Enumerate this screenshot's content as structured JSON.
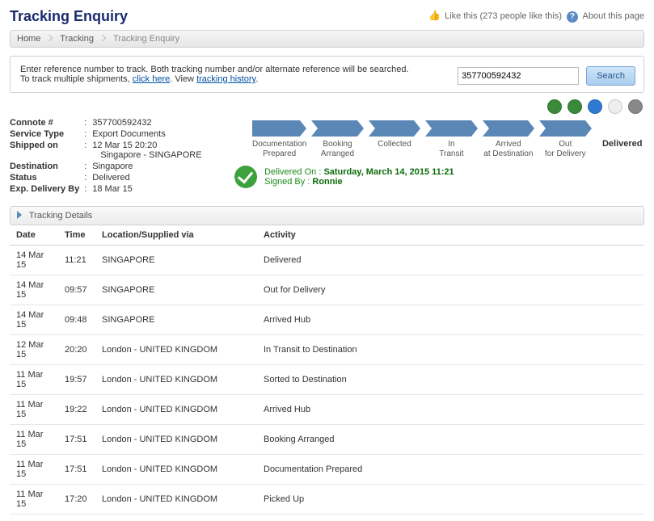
{
  "page": {
    "title": "Tracking Enquiry",
    "like_label": "Like this",
    "like_count": "(273 people like this)",
    "about_label": "About this page"
  },
  "breadcrumb": {
    "home": "Home",
    "tracking": "Tracking",
    "current": "Tracking Enquiry"
  },
  "search": {
    "line1": "Enter reference number to track. Both tracking number and/or alternate reference will be searched.",
    "line2a": "To track multiple shipments, ",
    "click_here": "click here",
    "line2b": ". View ",
    "tracking_history": "tracking history",
    "line2c": ".",
    "value": "357700592432",
    "button": "Search"
  },
  "toolbar_icons": {
    "i1": {
      "name": "refresh-icon",
      "bg": "#3a8a3a"
    },
    "i2": {
      "name": "globe-icon",
      "bg": "#3a8a3a"
    },
    "i3": {
      "name": "export-icon",
      "bg": "#2f7ad1"
    },
    "i4": {
      "name": "email-icon",
      "bg": "#eeeeee"
    },
    "i5": {
      "name": "print-icon",
      "bg": "#888888"
    }
  },
  "info": {
    "connote_label": "Connote #",
    "connote_value": "357700592432",
    "service_label": "Service Type",
    "service_value": "Export Documents",
    "shipped_label": "Shipped on",
    "shipped_value1": "12 Mar 15 20:20",
    "shipped_value2": "Singapore - SINGAPORE",
    "dest_label": "Destination",
    "dest_value": "Singapore",
    "status_label": "Status",
    "status_value": "Delivered",
    "exp_label": "Exp. Delivery By",
    "exp_value": "18 Mar 15"
  },
  "steps": [
    {
      "label": "Documentation Prepared"
    },
    {
      "label": "Booking Arranged"
    },
    {
      "label": "Collected"
    },
    {
      "label": "In Transit"
    },
    {
      "label": "Arrived at Destination"
    },
    {
      "label": "Out for Delivery"
    },
    {
      "label": "Delivered",
      "final": true
    }
  ],
  "delivered": {
    "line1_label": "Delivered On :",
    "line1_value": "Saturday, March 14, 2015 11:21",
    "line2_label": "Signed By :",
    "line2_value": "Ronnie"
  },
  "section": {
    "title": "Tracking Details"
  },
  "table": {
    "headers": {
      "date": "Date",
      "time": "Time",
      "loc": "Location/Supplied via",
      "act": "Activity"
    },
    "rows": [
      {
        "date": "14 Mar 15",
        "time": "11:21",
        "loc": "SINGAPORE",
        "act": "Delivered"
      },
      {
        "date": "14 Mar 15",
        "time": "09:57",
        "loc": "SINGAPORE",
        "act": "Out for Delivery"
      },
      {
        "date": "14 Mar 15",
        "time": "09:48",
        "loc": "SINGAPORE",
        "act": "Arrived Hub"
      },
      {
        "date": "12 Mar 15",
        "time": "20:20",
        "loc": "London - UNITED KINGDOM",
        "act": "In Transit to Destination"
      },
      {
        "date": "11 Mar 15",
        "time": "19:57",
        "loc": "London - UNITED KINGDOM",
        "act": "Sorted to Destination"
      },
      {
        "date": "11 Mar 15",
        "time": "19:22",
        "loc": "London - UNITED KINGDOM",
        "act": "Arrived Hub"
      },
      {
        "date": "11 Mar 15",
        "time": "17:51",
        "loc": "London - UNITED KINGDOM",
        "act": "Booking Arranged"
      },
      {
        "date": "11 Mar 15",
        "time": "17:51",
        "loc": "London - UNITED KINGDOM",
        "act": "Documentation Prepared"
      },
      {
        "date": "11 Mar 15",
        "time": "17:20",
        "loc": "London - UNITED KINGDOM",
        "act": "Picked Up"
      }
    ]
  }
}
